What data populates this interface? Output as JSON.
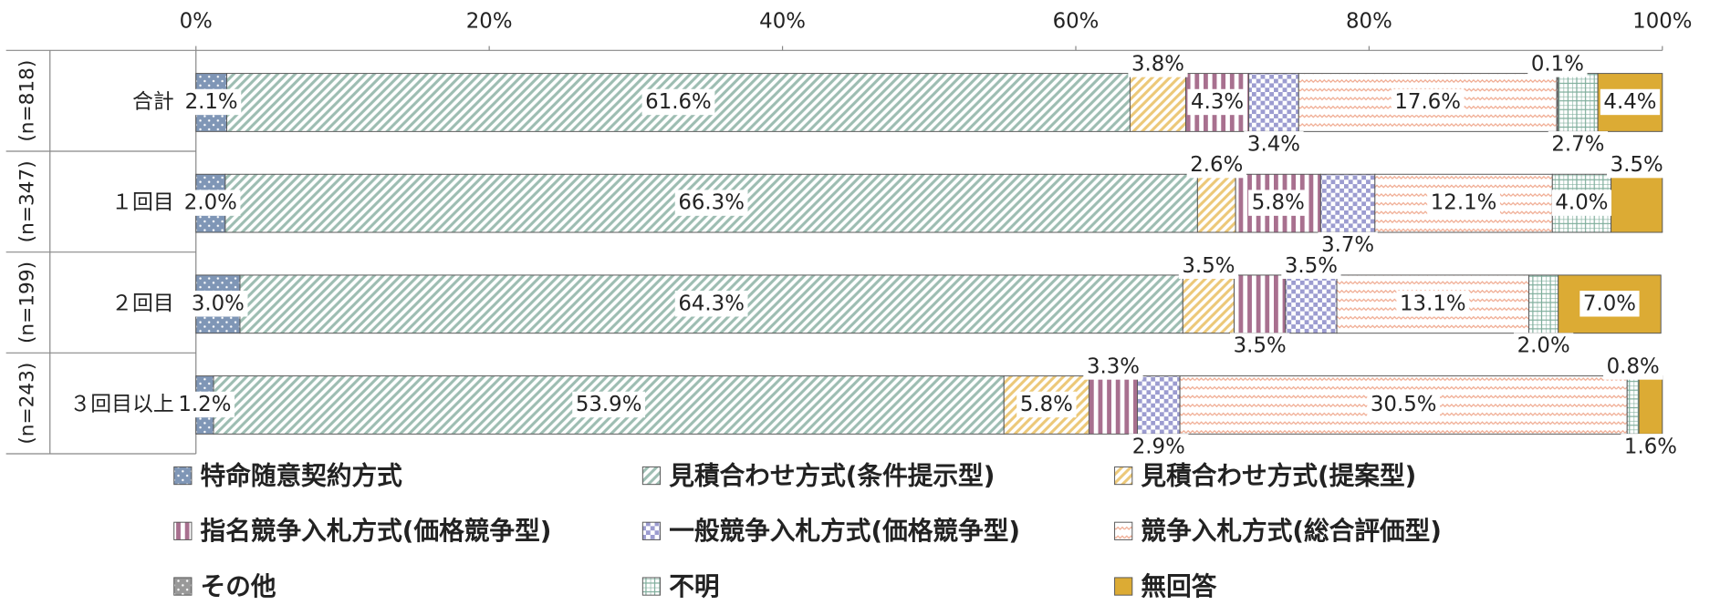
{
  "chart_data": {
    "type": "stacked-bar-horizontal",
    "categories": [
      "合計",
      "１回目",
      "２回目",
      "３回目以上"
    ],
    "sample_sizes": [
      "(n=818)",
      "(n=347)",
      "(n=199)",
      "(n=243)"
    ],
    "xlim": [
      0,
      100
    ],
    "xticks": [
      {
        "value": 0,
        "label": "0%"
      },
      {
        "value": 20,
        "label": "20%"
      },
      {
        "value": 40,
        "label": "40%"
      },
      {
        "value": 60,
        "label": "60%"
      },
      {
        "value": 80,
        "label": "80%"
      },
      {
        "value": 100,
        "label": "100%"
      }
    ],
    "series": [
      {
        "name": "特命随意契約方式",
        "color": "#7f96b6",
        "pattern": "dots",
        "values": [
          2.1,
          2.0,
          3.0,
          1.2
        ],
        "value_labels": [
          "2.1%",
          "2.0%",
          "3.0%",
          "1.2%"
        ]
      },
      {
        "name": "見積合わせ方式(条件提示型)",
        "color": "#9dbdb2",
        "pattern": "diag",
        "values": [
          61.6,
          66.3,
          64.3,
          53.9
        ],
        "value_labels": [
          "61.6%",
          "66.3%",
          "64.3%",
          "53.9%"
        ]
      },
      {
        "name": "見積合わせ方式(提案型)",
        "color": "#ecc878",
        "pattern": "diag",
        "values": [
          3.8,
          2.6,
          3.5,
          5.8
        ],
        "value_labels": [
          "3.8%",
          "2.6%",
          "3.5%",
          "5.8%"
        ]
      },
      {
        "name": "指名競争入札方式(価格競争型)",
        "color": "#a8708f",
        "pattern": "vlines",
        "values": [
          4.3,
          5.8,
          3.5,
          3.3
        ],
        "value_labels": [
          "4.3%",
          "5.8%",
          "3.5%",
          "3.3%"
        ]
      },
      {
        "name": "一般競争入札方式(価格競争型)",
        "color": "#9c9cd0",
        "pattern": "check",
        "values": [
          3.4,
          3.7,
          3.5,
          2.9
        ],
        "value_labels": [
          "3.4%",
          "3.7%",
          "3.5%",
          "2.9%"
        ]
      },
      {
        "name": "競争入札方式(総合評価型)",
        "color": "#f0aa90",
        "pattern": "wave",
        "values": [
          17.6,
          12.1,
          13.1,
          30.5
        ],
        "value_labels": [
          "17.6%",
          "12.1%",
          "13.1%",
          "30.5%"
        ]
      },
      {
        "name": "その他",
        "color": "#999999",
        "pattern": "dots",
        "values": [
          0.1,
          0,
          0,
          0
        ],
        "value_labels": [
          "0.1%",
          null,
          null,
          null
        ]
      },
      {
        "name": "不明",
        "color": "#7fae9c",
        "pattern": "grid",
        "values": [
          2.7,
          4.0,
          2.0,
          0.8
        ],
        "value_labels": [
          "2.7%",
          "4.0%",
          "2.0%",
          "0.8%"
        ]
      },
      {
        "name": "無回答",
        "color": "#dcab34",
        "pattern": "solid",
        "values": [
          4.4,
          3.5,
          7.0,
          1.6
        ],
        "value_labels": [
          "4.4%",
          "3.5%",
          "7.0%",
          "1.6%"
        ]
      }
    ],
    "legend_position": "bottom"
  }
}
